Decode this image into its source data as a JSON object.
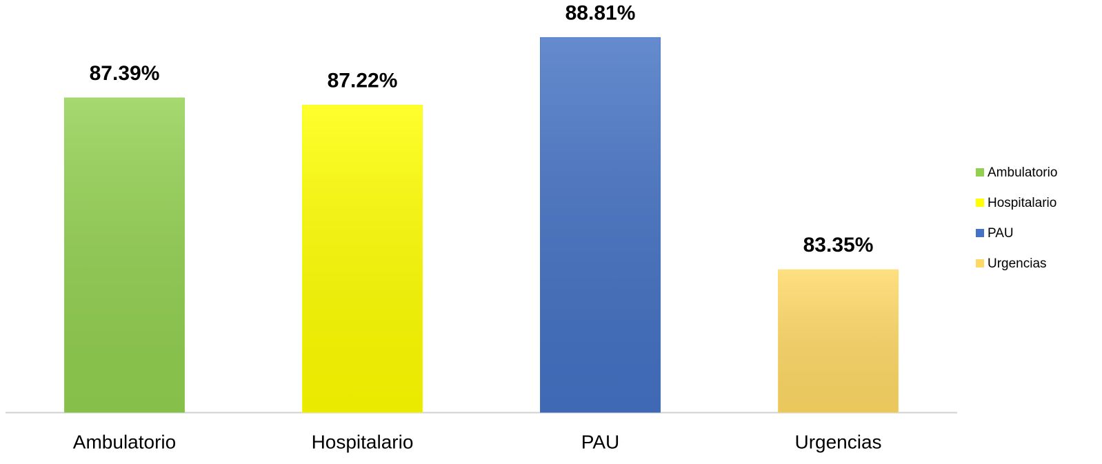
{
  "chart_data": {
    "type": "bar",
    "categories": [
      "Ambulatorio",
      "Hospitalario",
      "PAU",
      "Urgencias"
    ],
    "values": [
      87.39,
      87.22,
      88.81,
      83.35
    ],
    "value_labels": [
      "87.39%",
      "87.22%",
      "88.81%",
      "83.35%"
    ],
    "colors": [
      "#92d050",
      "#ffff00",
      "#4472c4",
      "#ffd966"
    ],
    "ylim": [
      80,
      90
    ],
    "legend": "right"
  }
}
